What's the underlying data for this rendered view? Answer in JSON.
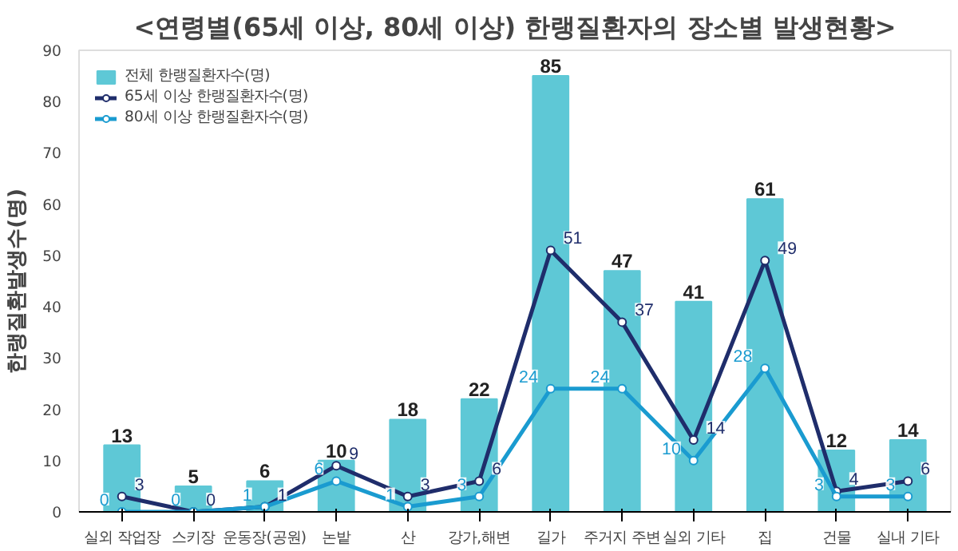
{
  "chart_data": {
    "type": "bar",
    "title": "<연령별(65세 이상, 80세 이상) 한랭질환자의 장소별 발생현황>",
    "ylabel": "한랭질환발생수(명)",
    "categories": [
      "실외 작업장",
      "스키장",
      "운동장(공원)",
      "논밭",
      "산",
      "강가,해변",
      "길가",
      "주거지 주변",
      "실외 기타",
      "집",
      "건물",
      "실내 기타"
    ],
    "series": [
      {
        "name": "전체 한랭질환자수(명)",
        "color": "#5ec8d6",
        "values": [
          13,
          5,
          6,
          10,
          18,
          22,
          85,
          47,
          41,
          61,
          12,
          14
        ]
      },
      {
        "name": "65세 이상 한랭질환자수(명)",
        "type": "line",
        "color": "#1f2d6b",
        "values": [
          3,
          0,
          1,
          9,
          3,
          6,
          51,
          37,
          14,
          49,
          4,
          6
        ]
      },
      {
        "name": "80세 이상 한랭질환자수(명)",
        "type": "line",
        "color": "#1a9bd0",
        "values": [
          0,
          0,
          1,
          6,
          1,
          3,
          24,
          24,
          10,
          28,
          3,
          3
        ]
      }
    ],
    "ylim": [
      0,
      90
    ],
    "yticks": [
      0,
      10,
      20,
      30,
      40,
      50,
      60,
      70,
      80,
      90
    ],
    "grid": false,
    "legend": "top left",
    "marker": "circle",
    "data_labels": true
  }
}
